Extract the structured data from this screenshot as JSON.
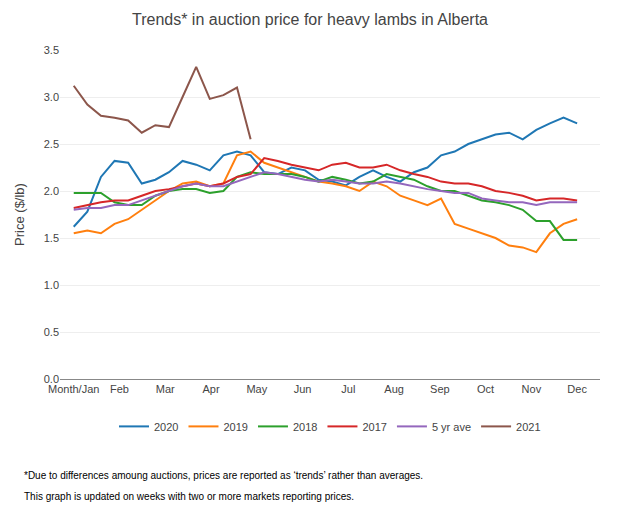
{
  "chart_data": {
    "type": "line",
    "title": "Trends* in auction price for heavy lambs in Alberta",
    "ylabel": "Price ($/lb)",
    "annotations": [
      "*Due to differences amoung auctions, prices are reported as ‘trends’ rather than averages.",
      "This graph is updated on weeks with two or more markets reporting prices."
    ],
    "x": [
      0,
      0.297297,
      0.594595,
      0.891892,
      1.189189,
      1.486486,
      1.783784,
      2.081081,
      2.378378,
      2.675676,
      2.972973,
      3.27027,
      3.567568,
      3.864865,
      4.162162,
      4.459459,
      4.756757,
      5.054054,
      5.351351,
      5.648649,
      5.945946,
      6.243243,
      6.540541,
      6.837838,
      7.135135,
      7.432432,
      7.72973,
      8.027027,
      8.324324,
      8.621622,
      8.918919,
      9.216216,
      9.513514,
      9.810811,
      10.108108,
      10.405405,
      10.702703,
      11
    ],
    "xlim": [
      -0.3,
      11.5
    ],
    "xticks": [
      {
        "value": 0,
        "label": "Month/Jan"
      },
      {
        "value": 1,
        "label": "Feb"
      },
      {
        "value": 2,
        "label": "Mar"
      },
      {
        "value": 3,
        "label": "Apr"
      },
      {
        "value": 4,
        "label": "May"
      },
      {
        "value": 5,
        "label": "Jun"
      },
      {
        "value": 6,
        "label": "Jul"
      },
      {
        "value": 7,
        "label": "Aug"
      },
      {
        "value": 8,
        "label": "Sep"
      },
      {
        "value": 9,
        "label": "Oct"
      },
      {
        "value": 10,
        "label": "Nov"
      },
      {
        "value": 11,
        "label": "Dec"
      }
    ],
    "ylim": [
      0.0,
      3.5
    ],
    "yticks": [
      {
        "value": 0.0,
        "label": "0.0"
      },
      0.5,
      {
        "value": 1.0,
        "label": "1.0"
      },
      1.5,
      {
        "value": 2.0,
        "label": "2.0"
      },
      2.5,
      {
        "value": 3.0,
        "label": "3.0"
      },
      3.5
    ],
    "grid": true,
    "legend": "bottom",
    "series": [
      {
        "name": "2020",
        "values": [
          1.62,
          1.78,
          2.15,
          2.32,
          2.3,
          2.08,
          2.12,
          2.2,
          2.32,
          2.28,
          2.22,
          2.38,
          2.42,
          2.38,
          2.2,
          2.18,
          2.25,
          2.22,
          2.12,
          2.1,
          2.06,
          2.15,
          2.22,
          2.15,
          2.1,
          2.2,
          2.25,
          2.38,
          2.42,
          2.5,
          2.55,
          2.6,
          2.62,
          2.55,
          2.65,
          2.72,
          2.78,
          2.72
        ]
      },
      {
        "name": "2019",
        "values": [
          1.55,
          1.58,
          1.55,
          1.65,
          1.7,
          1.8,
          1.9,
          2.0,
          2.08,
          2.1,
          2.05,
          2.08,
          2.38,
          2.42,
          2.3,
          2.25,
          2.2,
          2.15,
          2.1,
          2.08,
          2.05,
          2.0,
          2.1,
          2.05,
          1.95,
          1.9,
          1.85,
          1.92,
          1.65,
          1.6,
          1.55,
          1.5,
          1.42,
          1.4,
          1.35,
          1.55,
          1.65,
          1.7
        ]
      },
      {
        "name": "2018",
        "values": [
          1.98,
          1.98,
          1.98,
          1.88,
          1.85,
          1.85,
          1.95,
          2.0,
          2.02,
          2.02,
          1.98,
          2.0,
          2.15,
          2.2,
          2.18,
          2.18,
          2.18,
          2.15,
          2.1,
          2.15,
          2.12,
          2.08,
          2.1,
          2.18,
          2.15,
          2.12,
          2.05,
          2.0,
          2.0,
          1.95,
          1.9,
          1.88,
          1.85,
          1.8,
          1.68,
          1.68,
          1.48,
          1.48
        ]
      },
      {
        "name": "2017",
        "values": [
          1.82,
          1.85,
          1.88,
          1.9,
          1.9,
          1.95,
          2.0,
          2.02,
          2.05,
          2.08,
          2.05,
          2.08,
          2.15,
          2.18,
          2.35,
          2.32,
          2.28,
          2.25,
          2.22,
          2.28,
          2.3,
          2.25,
          2.25,
          2.28,
          2.22,
          2.18,
          2.15,
          2.1,
          2.08,
          2.08,
          2.05,
          2.0,
          1.98,
          1.95,
          1.9,
          1.92,
          1.92,
          1.9
        ]
      },
      {
        "name": "5 yr ave",
        "values": [
          1.8,
          1.82,
          1.82,
          1.85,
          1.85,
          1.9,
          1.95,
          2.0,
          2.05,
          2.08,
          2.05,
          2.05,
          2.1,
          2.15,
          2.2,
          2.18,
          2.15,
          2.12,
          2.1,
          2.12,
          2.1,
          2.08,
          2.08,
          2.1,
          2.08,
          2.05,
          2.02,
          2.0,
          1.98,
          1.98,
          1.92,
          1.9,
          1.88,
          1.88,
          1.85,
          1.88,
          1.88,
          1.88
        ]
      },
      {
        "name": "2021",
        "values": [
          3.12,
          2.92,
          2.8,
          2.78,
          2.75,
          2.62,
          2.7,
          2.68,
          3.0,
          3.32,
          2.98,
          3.02,
          3.1,
          2.55,
          null,
          null,
          null,
          null,
          null,
          null,
          null,
          null,
          null,
          null,
          null,
          null,
          null,
          null,
          null,
          null,
          null,
          null,
          null,
          null,
          null,
          null,
          null,
          null
        ]
      }
    ]
  }
}
